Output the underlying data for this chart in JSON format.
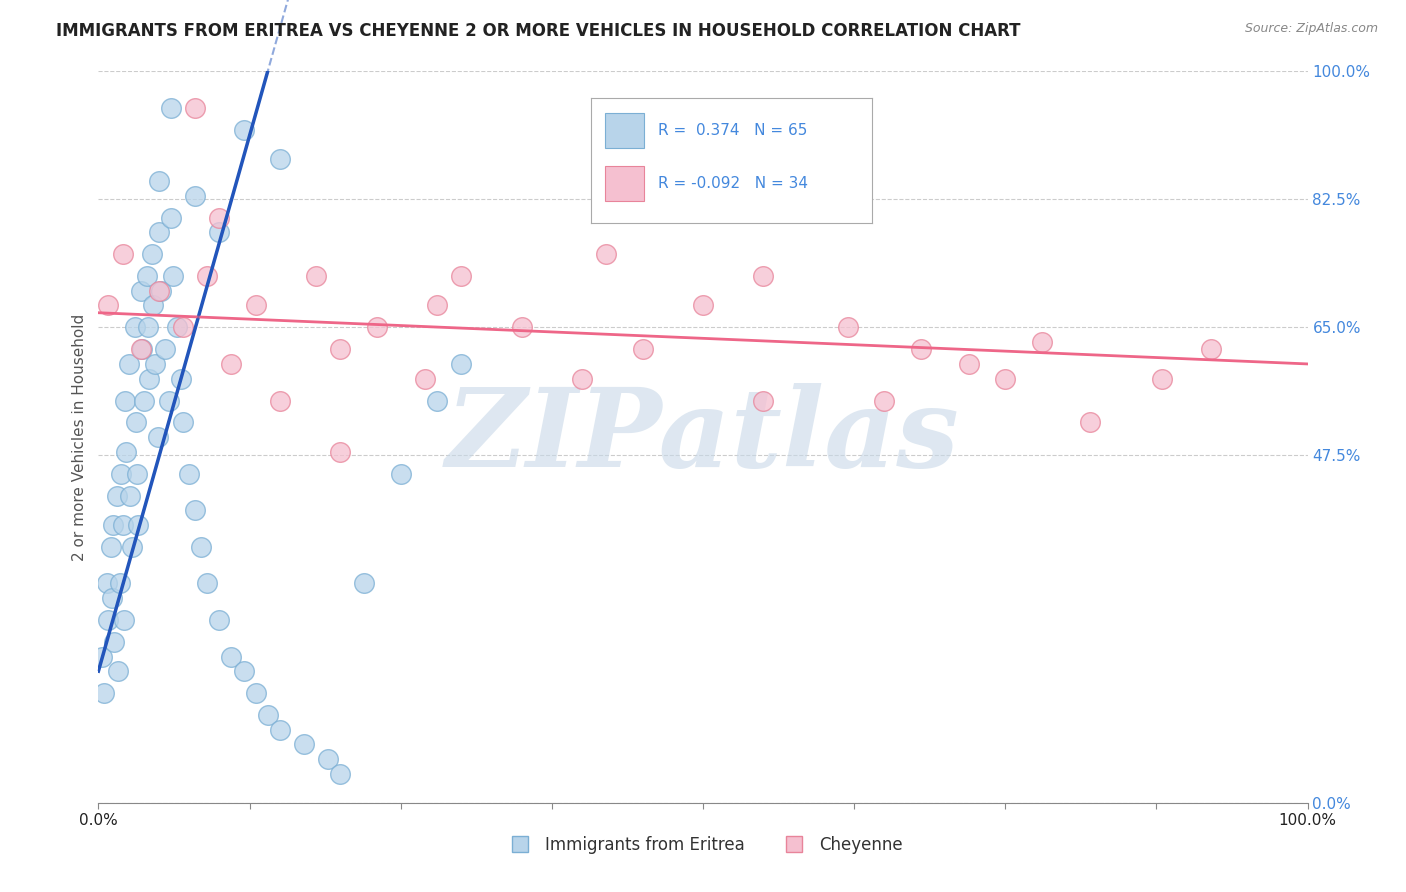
{
  "title": "IMMIGRANTS FROM ERITREA VS CHEYENNE 2 OR MORE VEHICLES IN HOUSEHOLD CORRELATION CHART",
  "source": "Source: ZipAtlas.com",
  "ylabel_label": "2 or more Vehicles in Household",
  "xlim": [
    0,
    100
  ],
  "ylim": [
    0,
    100
  ],
  "ytick_vals": [
    0,
    47.5,
    65.0,
    82.5,
    100.0
  ],
  "xtick_vals": [
    0,
    12.5,
    25,
    37.5,
    50,
    62.5,
    75,
    87.5,
    100
  ],
  "series1_name": "Immigrants from Eritrea",
  "series1_color": "#b8d4ea",
  "series1_edge": "#7bafd4",
  "series1_R": "0.374",
  "series1_N": "65",
  "series2_name": "Cheyenne",
  "series2_color": "#f5c0d0",
  "series2_edge": "#e8849a",
  "series2_R": "-0.092",
  "series2_N": "34",
  "regression1_color": "#2255bb",
  "regression2_color": "#ee6688",
  "watermark": "ZIPatlas",
  "watermark_color": "#c8d8e8",
  "background_color": "#ffffff",
  "title_color": "#222222",
  "axis_label_color": "#555555",
  "tick_color_y": "#4488dd",
  "tick_color_x": "#222222",
  "legend_text_color": "#4488dd",
  "legend_label_color": "#333333",
  "blue_scatter_x": [
    0.3,
    0.5,
    0.7,
    0.8,
    1.0,
    1.1,
    1.2,
    1.3,
    1.5,
    1.6,
    1.8,
    1.9,
    2.0,
    2.1,
    2.2,
    2.3,
    2.5,
    2.6,
    2.8,
    3.0,
    3.1,
    3.2,
    3.3,
    3.5,
    3.6,
    3.8,
    4.0,
    4.1,
    4.2,
    4.4,
    4.5,
    4.7,
    4.9,
    5.0,
    5.2,
    5.5,
    5.8,
    6.0,
    6.2,
    6.5,
    6.8,
    7.0,
    7.5,
    8.0,
    8.5,
    9.0,
    10.0,
    11.0,
    12.0,
    13.0,
    14.0,
    15.0,
    17.0,
    19.0,
    20.0,
    22.0,
    25.0,
    28.0,
    30.0,
    15.0,
    8.0,
    10.0,
    12.0,
    6.0,
    5.0
  ],
  "blue_scatter_y": [
    20.0,
    15.0,
    30.0,
    25.0,
    35.0,
    28.0,
    38.0,
    22.0,
    42.0,
    18.0,
    30.0,
    45.0,
    38.0,
    25.0,
    55.0,
    48.0,
    60.0,
    42.0,
    35.0,
    65.0,
    52.0,
    45.0,
    38.0,
    70.0,
    62.0,
    55.0,
    72.0,
    65.0,
    58.0,
    75.0,
    68.0,
    60.0,
    50.0,
    78.0,
    70.0,
    62.0,
    55.0,
    80.0,
    72.0,
    65.0,
    58.0,
    52.0,
    45.0,
    40.0,
    35.0,
    30.0,
    25.0,
    20.0,
    18.0,
    15.0,
    12.0,
    10.0,
    8.0,
    6.0,
    4.0,
    30.0,
    45.0,
    55.0,
    60.0,
    88.0,
    83.0,
    78.0,
    92.0,
    95.0,
    85.0
  ],
  "pink_scatter_x": [
    0.8,
    2.0,
    3.5,
    5.0,
    7.0,
    9.0,
    11.0,
    13.0,
    15.0,
    18.0,
    20.0,
    23.0,
    27.0,
    30.0,
    35.0,
    40.0,
    45.0,
    50.0,
    55.0,
    62.0,
    68.0,
    72.0,
    78.0,
    82.0,
    88.0,
    92.0,
    55.0,
    28.0,
    10.0,
    42.0,
    65.0,
    75.0,
    20.0,
    8.0
  ],
  "pink_scatter_y": [
    68.0,
    75.0,
    62.0,
    70.0,
    65.0,
    72.0,
    60.0,
    68.0,
    55.0,
    72.0,
    62.0,
    65.0,
    58.0,
    72.0,
    65.0,
    58.0,
    62.0,
    68.0,
    55.0,
    65.0,
    62.0,
    60.0,
    63.0,
    52.0,
    58.0,
    62.0,
    72.0,
    68.0,
    80.0,
    75.0,
    55.0,
    58.0,
    48.0,
    95.0
  ]
}
